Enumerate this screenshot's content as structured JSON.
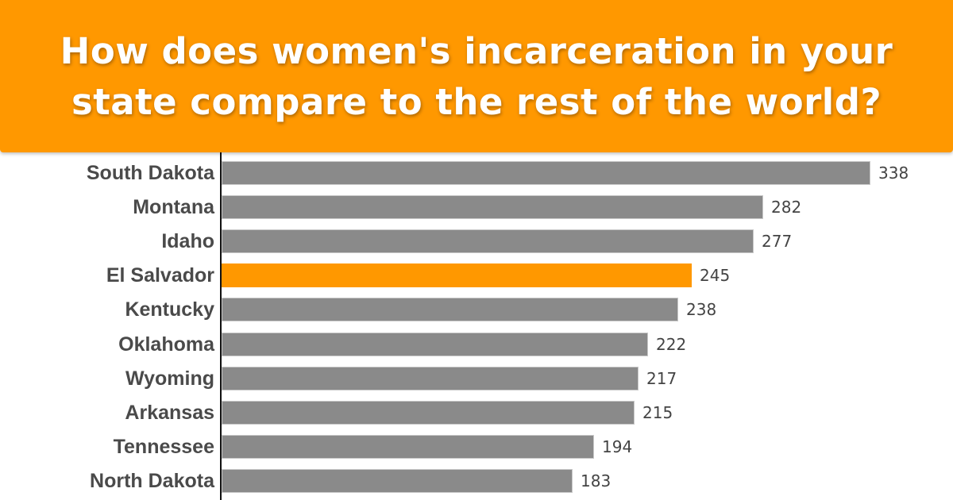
{
  "header": {
    "title": "How does women's incarceration in your state compare to the rest of the world?",
    "background_color": "#FF9800"
  },
  "colors": {
    "bar_default": "#8a8a8a",
    "bar_highlight": "#FF9800",
    "label_text": "#4a4a4a"
  },
  "chart_data": {
    "type": "bar",
    "orientation": "horizontal",
    "title": "How does women's incarceration in your state compare to the rest of the world?",
    "xlabel": "",
    "ylabel": "",
    "categories": [
      "South Dakota",
      "Montana",
      "Idaho",
      "El Salvador",
      "Kentucky",
      "Oklahoma",
      "Wyoming",
      "Arkansas",
      "Tennessee",
      "North Dakota"
    ],
    "values": [
      338,
      282,
      277,
      245,
      238,
      222,
      217,
      215,
      194,
      183
    ],
    "highlighted": [
      "El Salvador"
    ],
    "data_labels": true,
    "grid": false,
    "legend": null,
    "xlim": [
      0,
      338
    ]
  }
}
